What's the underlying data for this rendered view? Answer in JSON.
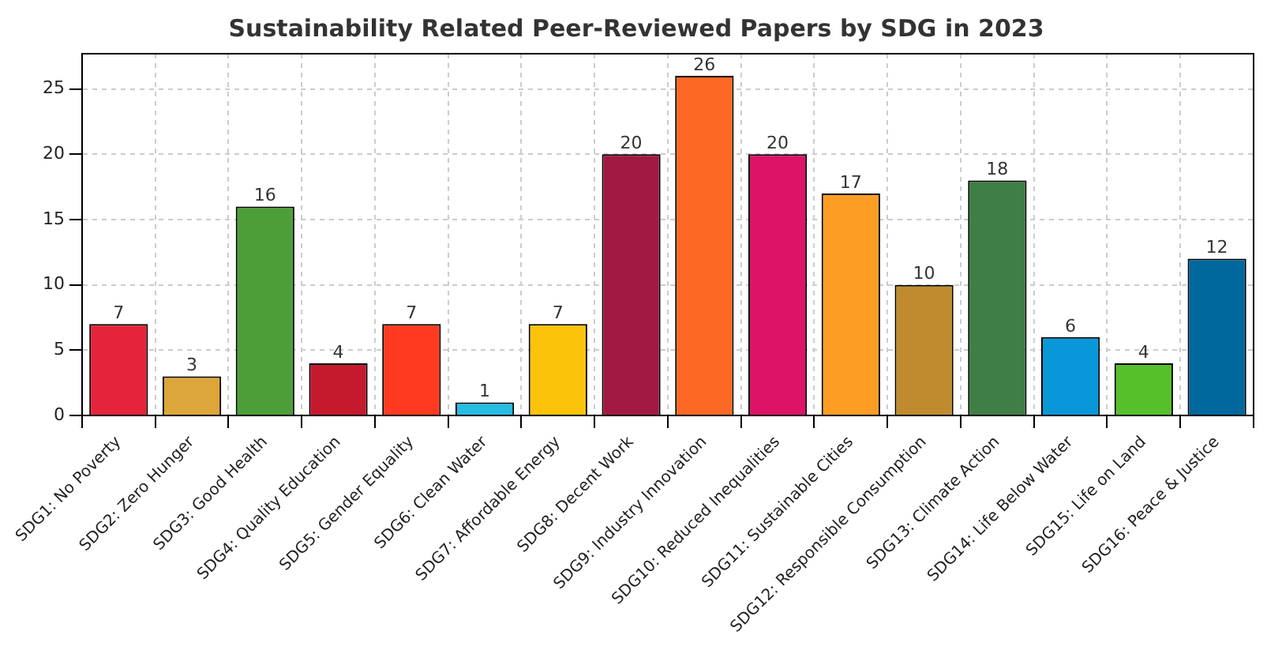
{
  "chart_data": {
    "type": "bar",
    "title": "Sustainability Related Peer-Reviewed Papers by SDG in 2023",
    "categories": [
      "SDG1: No Poverty",
      "SDG2: Zero Hunger",
      "SDG3: Good Health",
      "SDG4: Quality Education",
      "SDG5: Gender Equality",
      "SDG6: Clean Water",
      "SDG7: Affordable Energy",
      "SDG8: Decent Work",
      "SDG9: Industry Innovation",
      "SDG10: Reduced Inequalities",
      "SDG11: Sustainable Cities",
      "SDG12: Responsible Consumption",
      "SDG13: Climate Action",
      "SDG14: Life Below Water",
      "SDG15: Life on Land",
      "SDG16: Peace & Justice"
    ],
    "values": [
      7,
      3,
      16,
      4,
      7,
      1,
      7,
      20,
      26,
      20,
      17,
      10,
      18,
      6,
      4,
      12
    ],
    "colors": [
      "#e5243b",
      "#dda63a",
      "#4c9f38",
      "#c5192d",
      "#ff3a21",
      "#26bde2",
      "#fcc30b",
      "#a21942",
      "#fd6925",
      "#dd1367",
      "#fd9d24",
      "#bf8b2e",
      "#3f7e44",
      "#0a97d9",
      "#56c02b",
      "#00689d"
    ],
    "ylim": [
      0,
      27.7
    ],
    "yticks": [
      0,
      5,
      10,
      15,
      20,
      25
    ],
    "grid": true,
    "data_labels": true
  }
}
